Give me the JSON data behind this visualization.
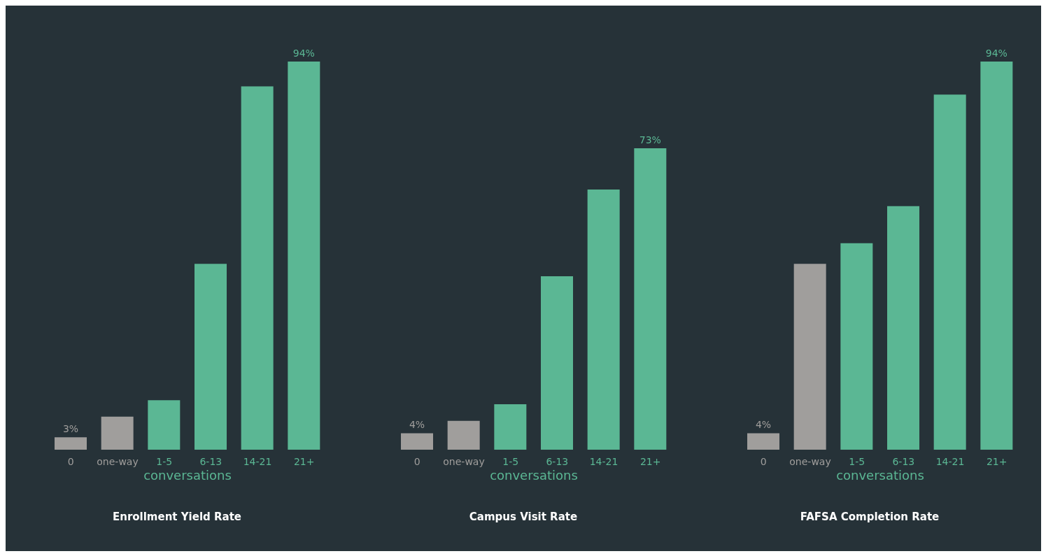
{
  "chart_data": [
    {
      "type": "bar",
      "title": "Enrollment Yield Rate",
      "xlabel": "conversations",
      "categories": [
        "0",
        "one-way",
        "1-5",
        "6-13",
        "14-21",
        "21+"
      ],
      "values": [
        3,
        8,
        12,
        45,
        88,
        94
      ],
      "colors": [
        "#a09e9c",
        "#a09e9c",
        "#5bb794",
        "#5bb794",
        "#5bb794",
        "#5bb794"
      ],
      "value_labels": [
        "3%",
        null,
        null,
        null,
        null,
        "94%"
      ]
    },
    {
      "type": "bar",
      "title": "Campus Visit Rate",
      "xlabel": "conversations",
      "categories": [
        "0",
        "one-way",
        "1-5",
        "6-13",
        "14-21",
        "21+"
      ],
      "values": [
        4,
        7,
        11,
        42,
        63,
        73
      ],
      "colors": [
        "#a09e9c",
        "#a09e9c",
        "#5bb794",
        "#5bb794",
        "#5bb794",
        "#5bb794"
      ],
      "value_labels": [
        "4%",
        null,
        null,
        null,
        null,
        "73%"
      ]
    },
    {
      "type": "bar",
      "title": "FAFSA Completion Rate",
      "xlabel": "conversations",
      "categories": [
        "0",
        "one-way",
        "1-5",
        "6-13",
        "14-21",
        "21+"
      ],
      "values": [
        4,
        45,
        50,
        59,
        86,
        94
      ],
      "colors": [
        "#a09e9c",
        "#a09e9c",
        "#5bb794",
        "#5bb794",
        "#5bb794",
        "#5bb794"
      ],
      "value_labels": [
        "4%",
        null,
        null,
        null,
        null,
        "94%"
      ]
    }
  ]
}
